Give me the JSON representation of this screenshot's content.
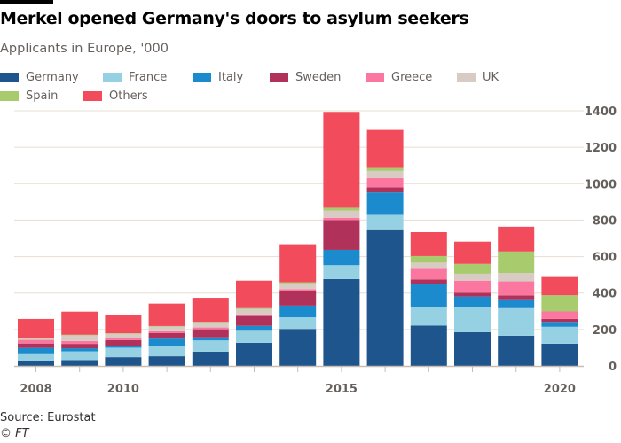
{
  "header": {
    "title": "Merkel opened Germany's doors to asylum seekers",
    "subtitle": "Applicants in Europe, '000"
  },
  "footer": {
    "source": "Source: Eurostat",
    "copyright": "© FT"
  },
  "colors": {
    "Germany": "#1e558c",
    "France": "#96d0e3",
    "Italy": "#1c8bcd",
    "Sweden": "#b0325a",
    "Greece": "#fb77a0",
    "UK": "#d8cbc3",
    "Spain": "#a8cb6e",
    "Others": "#f24c5c",
    "gridline": "#e6ddd2",
    "axis": "#c8bdb3",
    "tick_text": "#66605c"
  },
  "chart_data": {
    "type": "bar",
    "stacked": true,
    "title": "Merkel opened Germany's doors to asylum seekers",
    "subtitle": "Applicants in Europe, '000",
    "xlabel": "",
    "ylabel": "",
    "categories": [
      "2008",
      "2009",
      "2010",
      "2011",
      "2012",
      "2013",
      "2014",
      "2015",
      "2016",
      "2017",
      "2018",
      "2019",
      "2020"
    ],
    "x_tick_labels": [
      "2008",
      "",
      "2010",
      "",
      "",
      "",
      "",
      "2015",
      "",
      "",
      "",
      "",
      "2020"
    ],
    "ylim": [
      0,
      1400
    ],
    "y_ticks": [
      0,
      200,
      400,
      600,
      800,
      1000,
      1200,
      1400
    ],
    "y_axis_side": "right",
    "grid": true,
    "legend": {
      "placement": "top-left",
      "entries": [
        "Germany",
        "France",
        "Italy",
        "Sweden",
        "Greece",
        "UK",
        "Spain",
        "Others"
      ]
    },
    "series": [
      {
        "name": "Germany",
        "values": [
          27,
          32,
          48,
          53,
          78,
          127,
          203,
          477,
          745,
          222,
          185,
          166,
          122
        ]
      },
      {
        "name": "France",
        "values": [
          42,
          48,
          52,
          57,
          62,
          66,
          64,
          76,
          84,
          99,
          137,
          151,
          93
        ]
      },
      {
        "name": "Italy",
        "values": [
          30,
          17,
          10,
          40,
          17,
          27,
          64,
          84,
          123,
          128,
          59,
          44,
          27
        ]
      },
      {
        "name": "Sweden",
        "values": [
          24,
          24,
          32,
          30,
          44,
          54,
          81,
          163,
          28,
          26,
          21,
          26,
          16
        ]
      },
      {
        "name": "Greece",
        "values": [
          20,
          16,
          10,
          10,
          10,
          8,
          9,
          13,
          51,
          58,
          66,
          77,
          41
        ]
      },
      {
        "name": "UK",
        "values": [
          6,
          31,
          24,
          26,
          28,
          30,
          32,
          40,
          39,
          34,
          38,
          46,
          0
        ]
      },
      {
        "name": "Spain",
        "values": [
          4,
          3,
          3,
          3,
          3,
          5,
          6,
          15,
          16,
          36,
          54,
          118,
          89
        ]
      },
      {
        "name": "Others",
        "values": [
          105,
          127,
          103,
          123,
          132,
          151,
          209,
          526,
          209,
          131,
          122,
          136,
          100
        ]
      }
    ]
  }
}
